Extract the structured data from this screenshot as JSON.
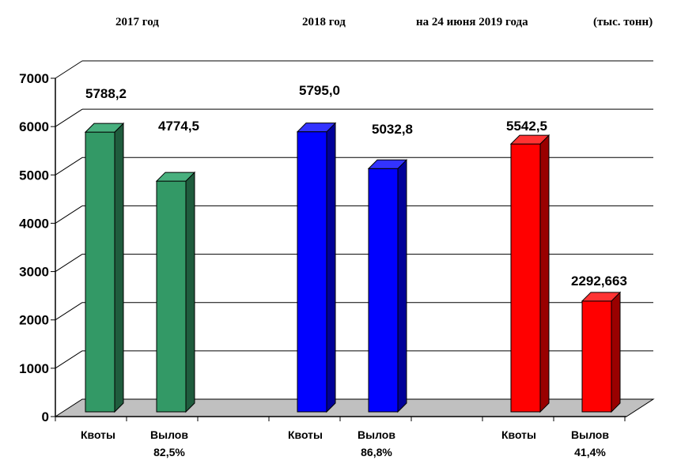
{
  "headers": {
    "group1": "2017  год",
    "group2": "2018  год",
    "group3": "на 24 июня 2019 года",
    "unit": "(тыс. тонн)"
  },
  "chart_data": {
    "type": "bar",
    "ylim": [
      0,
      7000
    ],
    "yticks": [
      "0",
      "1000",
      "2000",
      "3000",
      "4000",
      "5000",
      "6000",
      "7000"
    ],
    "grid": true,
    "bars": [
      {
        "group": "2017  год",
        "category": "Квоты",
        "value": 5788.2,
        "label": "5788,2",
        "sublabel": "",
        "color": "#339966",
        "side": "#1f5c3d",
        "topc": "#48b07e"
      },
      {
        "group": "2017  год",
        "category": "Вылов",
        "value": 4774.5,
        "label": "4774,5",
        "sublabel": "82,5%",
        "color": "#339966",
        "side": "#1f5c3d",
        "topc": "#48b07e"
      },
      {
        "group": "2018  год",
        "category": "Квоты",
        "value": 5795.0,
        "label": "5795,0",
        "sublabel": "",
        "color": "#0000ff",
        "side": "#000099",
        "topc": "#3333ff"
      },
      {
        "group": "2018  год",
        "category": "Вылов",
        "value": 5032.8,
        "label": "5032,8",
        "sublabel": "86,8%",
        "color": "#0000ff",
        "side": "#000099",
        "topc": "#3333ff"
      },
      {
        "group": "на 24 июня 2019 года",
        "category": "Квоты",
        "value": 5542.5,
        "label": "5542,5",
        "sublabel": "",
        "color": "#ff0000",
        "side": "#990000",
        "topc": "#ff3333"
      },
      {
        "group": "на 24 июня 2019 года",
        "category": "Вылов",
        "value": 2292.663,
        "label": "2292,663",
        "sublabel": "41,4%",
        "color": "#ff0000",
        "side": "#990000",
        "topc": "#ff3333"
      }
    ]
  }
}
